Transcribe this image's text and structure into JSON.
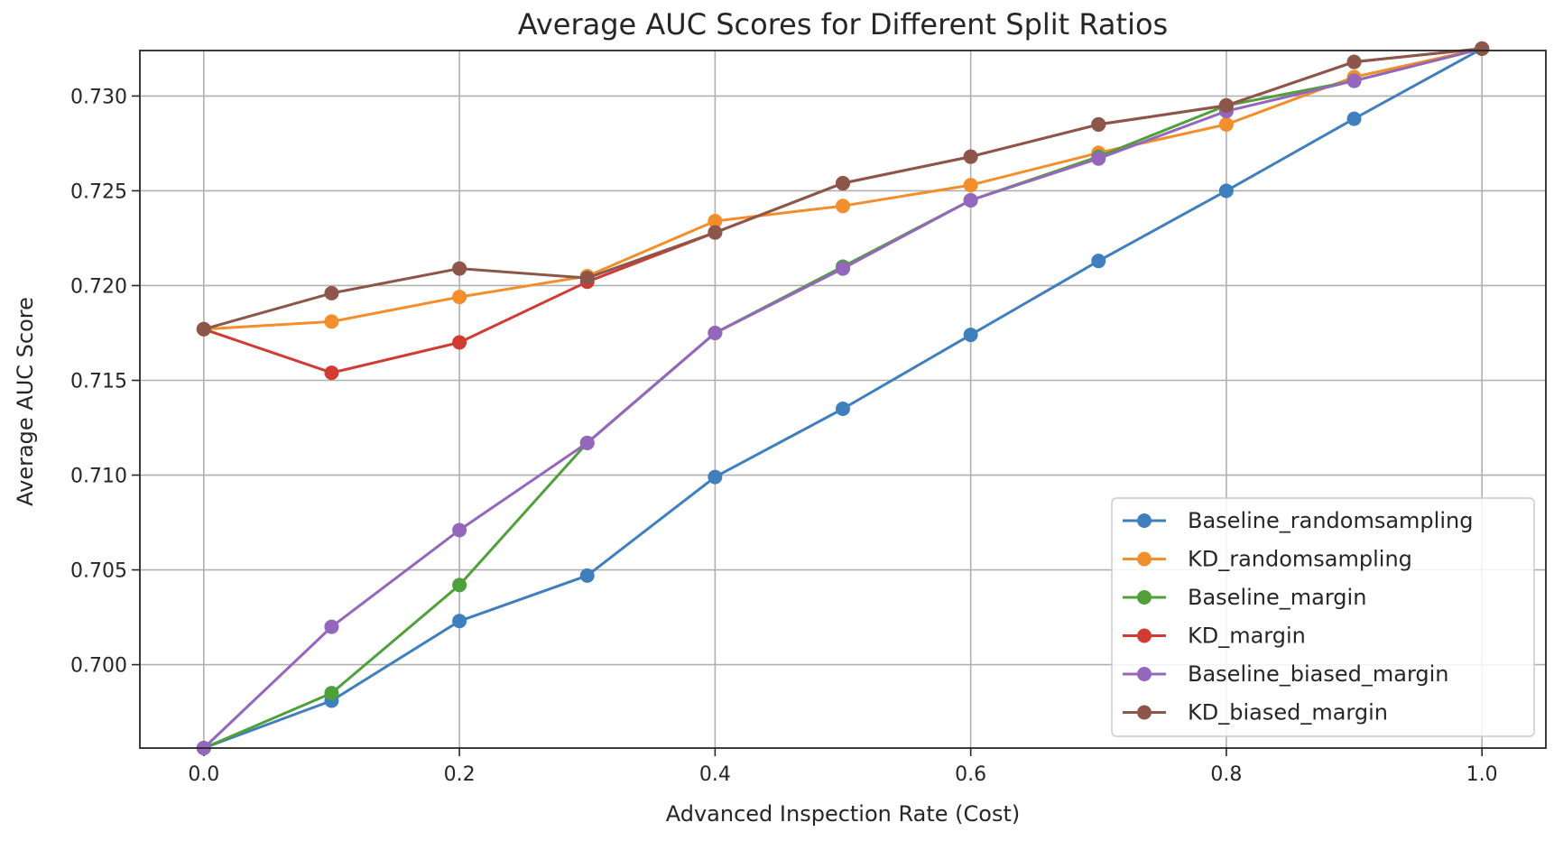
{
  "chart_data": {
    "type": "line",
    "title": "Average AUC Scores for Different Split Ratios",
    "xlabel": "Advanced Inspection Rate (Cost)",
    "ylabel": "Average AUC Score",
    "xlim": [
      -0.05,
      1.05
    ],
    "ylim": [
      0.6956,
      0.7324
    ],
    "xticks": [
      0.0,
      0.2,
      0.4,
      0.6,
      0.8,
      1.0
    ],
    "xtick_labels": [
      "0.0",
      "0.2",
      "0.4",
      "0.6",
      "0.8",
      "1.0"
    ],
    "yticks": [
      0.7,
      0.705,
      0.71,
      0.715,
      0.72,
      0.725,
      0.73
    ],
    "ytick_labels": [
      "0.700",
      "0.705",
      "0.710",
      "0.715",
      "0.720",
      "0.725",
      "0.730"
    ],
    "grid": true,
    "legend_position": "bottom-right",
    "x": [
      0.0,
      0.1,
      0.2,
      0.3,
      0.4,
      0.5,
      0.6,
      0.7,
      0.8,
      0.9,
      1.0
    ],
    "series": [
      {
        "name": "Baseline_randomsampling",
        "color": "#3f7fbd",
        "values": [
          0.6956,
          0.6981,
          0.7023,
          0.7047,
          0.7099,
          0.7135,
          0.7174,
          0.7213,
          0.725,
          0.7288,
          0.7325
        ]
      },
      {
        "name": "KD_randomsampling",
        "color": "#f28e2b",
        "values": [
          0.7177,
          0.7181,
          0.7194,
          0.7205,
          0.7234,
          0.7242,
          0.7253,
          0.727,
          0.7285,
          0.731,
          0.7325
        ]
      },
      {
        "name": "Baseline_margin",
        "color": "#4fa03b",
        "values": [
          0.6956,
          0.6985,
          0.7042,
          0.7117,
          0.7175,
          0.721,
          0.7245,
          0.7268,
          0.7295,
          0.7308,
          0.7325
        ]
      },
      {
        "name": "KD_margin",
        "color": "#d03c34",
        "values": [
          0.7177,
          0.7154,
          0.717,
          0.7202,
          0.7228,
          0.7254,
          0.7268,
          0.7285,
          0.7295,
          0.7318,
          0.7325
        ]
      },
      {
        "name": "Baseline_biased_margin",
        "color": "#9467bd",
        "values": [
          0.6956,
          0.702,
          0.7071,
          0.7117,
          0.7175,
          0.7209,
          0.7245,
          0.7267,
          0.7292,
          0.7308,
          0.7325
        ]
      },
      {
        "name": "KD_biased_margin",
        "color": "#8c564b",
        "values": [
          0.7177,
          0.7196,
          0.7209,
          0.7204,
          0.7228,
          0.7254,
          0.7268,
          0.7285,
          0.7295,
          0.7318,
          0.7325
        ]
      }
    ]
  }
}
